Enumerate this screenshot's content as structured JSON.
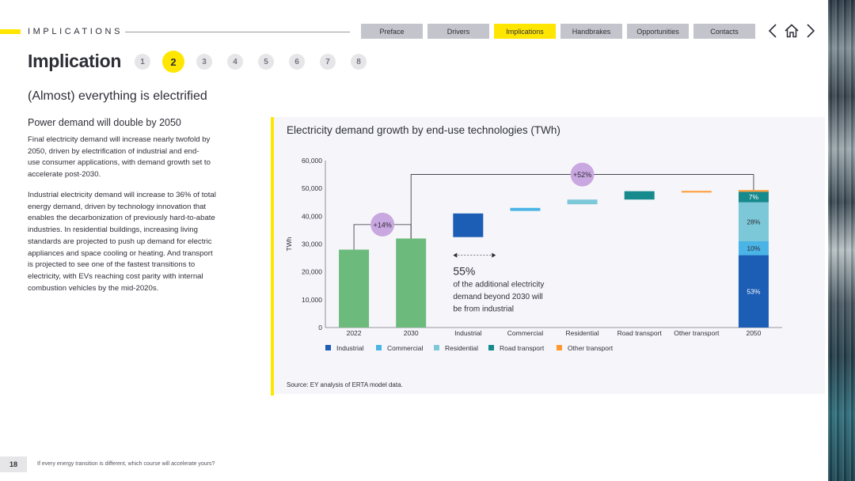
{
  "header": {
    "section_label": "IMPLICATIONS",
    "nav_tabs": [
      {
        "label": "Preface",
        "active": false
      },
      {
        "label": "Drivers",
        "active": false
      },
      {
        "label": "Implications",
        "active": true
      },
      {
        "label": "Handbrakes",
        "active": false
      },
      {
        "label": "Opportunities",
        "active": false
      },
      {
        "label": "Contacts",
        "active": false
      }
    ],
    "icons": [
      "chevron-left-icon",
      "home-icon",
      "chevron-right-icon"
    ]
  },
  "page": {
    "title": "Implication",
    "steps": [
      "1",
      "2",
      "3",
      "4",
      "5",
      "6",
      "7",
      "8"
    ],
    "active_step": "2",
    "subtitle": "(Almost) everything is electrified"
  },
  "left_column": {
    "heading": "Power demand will double by 2050",
    "para1_lines": [
      "Final electricity demand will increase nearly twofold by",
      "2050, driven by electrification of industrial and end-",
      "use consumer applications, with demand growth set to",
      "accelerate post-2030."
    ],
    "para2_lines": [
      "Industrial electricity demand will increase to 36% of total",
      "energy demand, driven by technology innovation that",
      "enables the decarbonization of previously hard-to-abate",
      "industries. In residential buildings, increasing living",
      "standards are projected to push up demand for electric",
      "appliances and space cooling or heating. And transport",
      "is projected to see one of the fastest transitions to",
      "electricity, with EVs reaching cost parity with internal",
      "combustion vehicles by the mid-2020s."
    ]
  },
  "chart_title": "Electricity demand growth by end-use technologies (TWh)",
  "chart_source": "Source: EY analysis of ERTA model data.",
  "chart_data": {
    "type": "bar",
    "subtype": "waterfall",
    "ylabel": "TWh",
    "ylim": [
      0,
      60000
    ],
    "yticks": [
      "0",
      "10,000",
      "20,000",
      "30,000",
      "40,000",
      "50,000",
      "60,000"
    ],
    "categories": [
      "2022",
      "2030",
      "Industrial",
      "Commercial",
      "Residential",
      "Road transport",
      "Other transport",
      "2050"
    ],
    "totals": [
      {
        "category": "2022",
        "value": 28000
      },
      {
        "category": "2030",
        "value": 32000
      }
    ],
    "increments": [
      {
        "category": "Industrial",
        "from": 32500,
        "to": 41000,
        "series": "Industrial"
      },
      {
        "category": "Commercial",
        "from": 41900,
        "to": 43000,
        "series": "Commercial"
      },
      {
        "category": "Residential",
        "from": 44300,
        "to": 46000,
        "series": "Residential"
      },
      {
        "category": "Road transport",
        "from": 46000,
        "to": 49000,
        "series": "Road transport"
      },
      {
        "category": "Other transport",
        "from": 48700,
        "to": 49100,
        "series": "Other transport"
      }
    ],
    "stack_2050": [
      {
        "series": "Industrial",
        "from": 0,
        "to": 26000,
        "label": "53%"
      },
      {
        "series": "Commercial",
        "from": 26000,
        "to": 31000,
        "label": "10%"
      },
      {
        "series": "Residential",
        "from": 31000,
        "to": 45000,
        "label": "28%"
      },
      {
        "series": "Road transport",
        "from": 45000,
        "to": 48800,
        "label": "7%"
      },
      {
        "series": "Other transport",
        "from": 48800,
        "to": 49400,
        "label": ""
      }
    ],
    "growth_badges": [
      {
        "label": "+14%",
        "from": "2022",
        "to": "2030"
      },
      {
        "label": "+52%",
        "from": "2030",
        "to": "2050"
      }
    ],
    "annotation": {
      "value": "55%",
      "text_lines": [
        "of the additional electricity",
        "demand beyond 2030 will",
        "be from industrial"
      ]
    },
    "legend": [
      {
        "name": "Industrial",
        "color": "#1c5db5"
      },
      {
        "name": "Commercial",
        "color": "#4bb4e6"
      },
      {
        "name": "Residential",
        "color": "#7cc8d8"
      },
      {
        "name": "Road transport",
        "color": "#168a8d"
      },
      {
        "name": "Other transport",
        "color": "#ff9831"
      }
    ],
    "total_color": "#6cbb7c",
    "badge_color": "#c9a7e0"
  },
  "footer": {
    "page_number": "18",
    "tagline": "If every energy transition is different, which course will accelerate yours?"
  }
}
